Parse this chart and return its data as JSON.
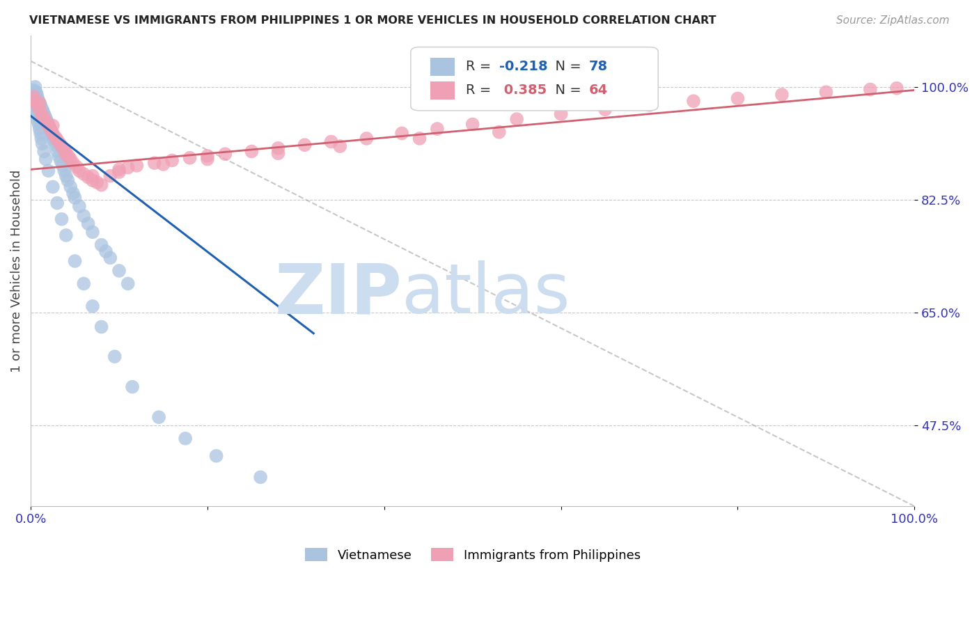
{
  "title": "VIETNAMESE VS IMMIGRANTS FROM PHILIPPINES 1 OR MORE VEHICLES IN HOUSEHOLD CORRELATION CHART",
  "source": "Source: ZipAtlas.com",
  "ylabel": "1 or more Vehicles in Household",
  "ytick_labels": [
    "47.5%",
    "65.0%",
    "82.5%",
    "100.0%"
  ],
  "ytick_values": [
    0.475,
    0.65,
    0.825,
    1.0
  ],
  "xlim": [
    0.0,
    1.0
  ],
  "ylim": [
    0.35,
    1.08
  ],
  "legend_label_blue": "Vietnamese",
  "legend_label_pink": "Immigrants from Philippines",
  "R_blue": -0.218,
  "N_blue": 78,
  "R_pink": 0.385,
  "N_pink": 64,
  "blue_color": "#aac4e0",
  "pink_color": "#f0a0b5",
  "blue_line_color": "#2060b0",
  "pink_line_color": "#d06070",
  "blue_line_x": [
    0.0,
    0.32
  ],
  "blue_line_y": [
    0.955,
    0.618
  ],
  "pink_line_x": [
    0.0,
    1.0
  ],
  "pink_line_y": [
    0.872,
    0.995
  ],
  "dashed_line_x": [
    0.0,
    1.0
  ],
  "dashed_line_y": [
    1.04,
    0.35
  ],
  "watermark_zip": "ZIP",
  "watermark_atlas": "atlas",
  "watermark_color": "#ccddf0",
  "scatter_blue_x": [
    0.003,
    0.004,
    0.005,
    0.005,
    0.006,
    0.006,
    0.007,
    0.007,
    0.008,
    0.008,
    0.009,
    0.01,
    0.01,
    0.011,
    0.012,
    0.013,
    0.014,
    0.015,
    0.016,
    0.017,
    0.018,
    0.019,
    0.02,
    0.021,
    0.022,
    0.023,
    0.024,
    0.025,
    0.026,
    0.027,
    0.028,
    0.03,
    0.032,
    0.034,
    0.036,
    0.038,
    0.04,
    0.042,
    0.045,
    0.048,
    0.05,
    0.055,
    0.06,
    0.065,
    0.07,
    0.08,
    0.085,
    0.09,
    0.1,
    0.11,
    0.003,
    0.004,
    0.005,
    0.006,
    0.007,
    0.008,
    0.009,
    0.01,
    0.011,
    0.012,
    0.013,
    0.015,
    0.017,
    0.02,
    0.025,
    0.03,
    0.035,
    0.04,
    0.05,
    0.06,
    0.07,
    0.08,
    0.095,
    0.115,
    0.145,
    0.175,
    0.21,
    0.26
  ],
  "scatter_blue_y": [
    0.995,
    0.99,
    1.0,
    0.985,
    0.992,
    0.975,
    0.988,
    0.97,
    0.982,
    0.965,
    0.978,
    0.975,
    0.96,
    0.972,
    0.968,
    0.965,
    0.962,
    0.958,
    0.955,
    0.952,
    0.948,
    0.945,
    0.942,
    0.938,
    0.935,
    0.932,
    0.928,
    0.925,
    0.92,
    0.915,
    0.91,
    0.9,
    0.892,
    0.885,
    0.878,
    0.87,
    0.862,
    0.855,
    0.845,
    0.835,
    0.828,
    0.815,
    0.8,
    0.788,
    0.775,
    0.755,
    0.745,
    0.735,
    0.715,
    0.695,
    0.98,
    0.975,
    0.968,
    0.962,
    0.955,
    0.948,
    0.942,
    0.935,
    0.928,
    0.92,
    0.912,
    0.9,
    0.888,
    0.87,
    0.845,
    0.82,
    0.795,
    0.77,
    0.73,
    0.695,
    0.66,
    0.628,
    0.582,
    0.535,
    0.488,
    0.455,
    0.428,
    0.395
  ],
  "scatter_pink_x": [
    0.003,
    0.005,
    0.007,
    0.01,
    0.012,
    0.015,
    0.018,
    0.02,
    0.022,
    0.025,
    0.028,
    0.03,
    0.033,
    0.035,
    0.038,
    0.04,
    0.043,
    0.045,
    0.048,
    0.052,
    0.055,
    0.06,
    0.065,
    0.07,
    0.075,
    0.08,
    0.09,
    0.1,
    0.11,
    0.12,
    0.14,
    0.16,
    0.18,
    0.2,
    0.22,
    0.25,
    0.28,
    0.31,
    0.34,
    0.38,
    0.42,
    0.46,
    0.5,
    0.55,
    0.6,
    0.65,
    0.7,
    0.75,
    0.8,
    0.85,
    0.9,
    0.95,
    0.98,
    0.01,
    0.025,
    0.04,
    0.07,
    0.1,
    0.15,
    0.2,
    0.28,
    0.35,
    0.44,
    0.53
  ],
  "scatter_pink_y": [
    0.985,
    0.978,
    0.972,
    0.965,
    0.958,
    0.952,
    0.945,
    0.94,
    0.935,
    0.928,
    0.922,
    0.918,
    0.912,
    0.908,
    0.902,
    0.898,
    0.892,
    0.888,
    0.882,
    0.876,
    0.87,
    0.865,
    0.86,
    0.855,
    0.852,
    0.848,
    0.862,
    0.868,
    0.875,
    0.878,
    0.882,
    0.886,
    0.89,
    0.893,
    0.896,
    0.9,
    0.905,
    0.91,
    0.915,
    0.92,
    0.928,
    0.935,
    0.942,
    0.95,
    0.958,
    0.965,
    0.972,
    0.978,
    0.982,
    0.988,
    0.992,
    0.996,
    0.998,
    0.975,
    0.94,
    0.895,
    0.862,
    0.872,
    0.88,
    0.888,
    0.897,
    0.908,
    0.92,
    0.93
  ]
}
